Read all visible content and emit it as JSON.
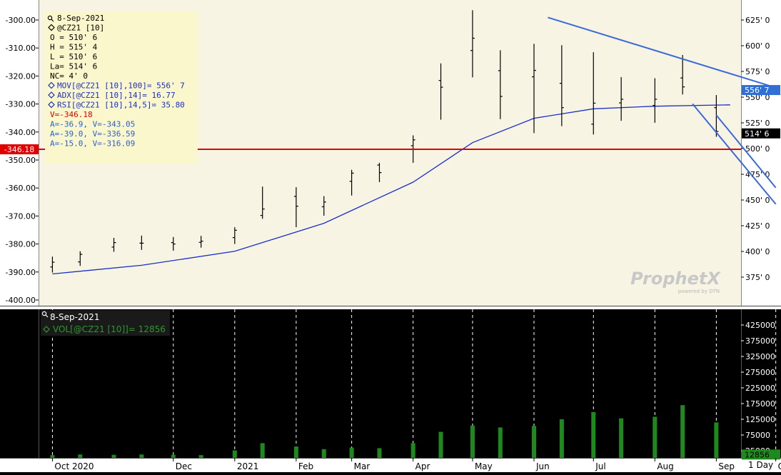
{
  "chart_data": [
    {
      "type": "bar",
      "name": "price-panel",
      "instrument": "@CZ21",
      "header": {
        "date": "8-Sep-2021",
        "symbol": "@CZ21 [10]",
        "lines": [
          "O = 510' 6",
          "H = 515' 4",
          "L = 510' 6",
          "La= 514' 6",
          "NC= 4' 0"
        ],
        "indicators": [
          "MOV[@CZ21 [10],100]= 556' 7",
          "ADX[@CZ21 [10],14]= 16.77",
          "RSI[@CZ21 [10],14,5]= 35.80"
        ],
        "cursor_v": "V=-346.18",
        "annotations": [
          "A=-36.9, V=-343.05",
          "A=-39.0, V=-336.59",
          "A=-15.0, V=-316.09"
        ]
      },
      "left_axis": {
        "ticks": [
          -300,
          -310,
          -320,
          -330,
          -340,
          -350,
          -360,
          -370,
          -380,
          -390,
          -400
        ],
        "tick_labels": [
          "-300.00",
          "-310.00",
          "-320.00",
          "-330.00",
          "-340.00",
          "-350.00",
          "-360.00",
          "-370.00",
          "-380.00",
          "-390.00",
          "-400.00"
        ],
        "ylim": [
          -401.5,
          -295.5
        ]
      },
      "right_axis": {
        "tick_labels": [
          "625' 0",
          "600' 0",
          "575' 0",
          "550' 0",
          "525' 0",
          "500' 0",
          "475' 0",
          "450' 0",
          "425' 0",
          "400' 0",
          "375' 0"
        ],
        "ticks": [
          625,
          600,
          575,
          550,
          525,
          500,
          475,
          450,
          425,
          400,
          375
        ]
      },
      "horizontal_line": {
        "label": "-346.18",
        "color": "#e00000"
      },
      "price_tags": [
        {
          "label": "556' 7",
          "color": "#2f6fd6",
          "value": 556.9
        },
        {
          "label": "514' 6",
          "color": "#000000",
          "value": 514.75
        }
      ],
      "moving_average": {
        "color": "#1a2fc8",
        "x": [
          "2020-10-01",
          "2020-11-15",
          "2021-01-01",
          "2021-02-15",
          "2021-04-01",
          "2021-05-01",
          "2021-06-01",
          "2021-07-01",
          "2021-08-01",
          "2021-09-08"
        ],
        "values": [
          -390.7,
          -387.6,
          -382.6,
          -372.6,
          -357.9,
          -343.8,
          -335.1,
          -331.7,
          -330.8,
          -330.3
        ]
      },
      "trendlines": [
        {
          "color": "#3a6ad8",
          "points": [
            [
              "2021-06-08",
              627.5
            ],
            [
              "2021-09-28",
              561
            ]
          ]
        },
        {
          "color": "#3a6ad8",
          "points": [
            [
              "2021-08-20",
              543.5
            ],
            [
              "2021-10-01",
              446
            ]
          ]
        },
        {
          "color": "#3a6ad8",
          "points": [
            [
              "2021-09-01",
              532.5
            ],
            [
              "2021-10-01",
              462
            ]
          ]
        }
      ],
      "ohlc_series": [
        {
          "x": "2020-10-01",
          "o": -388.2,
          "h": -384.5,
          "l": -390.2,
          "c": -386.5
        },
        {
          "x": "2020-10-15",
          "o": -386.4,
          "h": -382.6,
          "l": -387.8,
          "c": -383.7
        },
        {
          "x": "2020-11-01",
          "o": -381.1,
          "h": -377.8,
          "l": -382.8,
          "c": -379.5
        },
        {
          "x": "2020-11-15",
          "o": -379.7,
          "h": -377.0,
          "l": -382.1,
          "c": -379.7
        },
        {
          "x": "2020-12-01",
          "o": -379.5,
          "h": -377.5,
          "l": -382.4,
          "c": -380.0
        },
        {
          "x": "2020-12-15",
          "o": -379.4,
          "h": -377.1,
          "l": -381.3,
          "c": -379.0
        },
        {
          "x": "2021-01-01",
          "o": -377.7,
          "h": -374.0,
          "l": -380.0,
          "c": -375.1
        },
        {
          "x": "2021-01-15",
          "o": -369.8,
          "h": -359.5,
          "l": -371.0,
          "c": -367.5
        },
        {
          "x": "2021-02-01",
          "o": -363.0,
          "h": -359.7,
          "l": -374.0,
          "c": -366.5
        },
        {
          "x": "2021-02-15",
          "o": -366.7,
          "h": -362.9,
          "l": -369.9,
          "c": -365.0
        },
        {
          "x": "2021-03-01",
          "o": -357.6,
          "h": -353.5,
          "l": -362.7,
          "c": -354.7
        },
        {
          "x": "2021-03-15",
          "o": -351.8,
          "h": -351.0,
          "l": -357.9,
          "c": -354.5
        },
        {
          "x": "2021-04-01",
          "o": -344.9,
          "h": -341.2,
          "l": -351.0,
          "c": -342.8
        },
        {
          "x": "2021-04-15",
          "o": -321.6,
          "h": -315.5,
          "l": -335.6,
          "c": -324.0
        },
        {
          "x": "2021-05-01",
          "o": -310.9,
          "h": -296.5,
          "l": -320.5,
          "c": -306.5
        },
        {
          "x": "2021-05-15",
          "o": -318.1,
          "h": -310.8,
          "l": -335.4,
          "c": -327.3
        },
        {
          "x": "2021-06-01",
          "o": -320.3,
          "h": -308.5,
          "l": -340.4,
          "c": -318.0
        },
        {
          "x": "2021-06-15",
          "o": -322.6,
          "h": -309.0,
          "l": -337.9,
          "c": -331.3
        },
        {
          "x": "2021-07-01",
          "o": -337.2,
          "h": -311.5,
          "l": -340.9,
          "c": -329.7
        },
        {
          "x": "2021-07-15",
          "o": -329.6,
          "h": -320.4,
          "l": -336.0,
          "c": -328.3
        },
        {
          "x": "2021-08-01",
          "o": -330.5,
          "h": -320.8,
          "l": -336.7,
          "c": -328.3
        },
        {
          "x": "2021-08-15",
          "o": -320.7,
          "h": -312.5,
          "l": -326.6,
          "c": -323.9
        },
        {
          "x": "2021-09-01",
          "o": -331.3,
          "h": -326.8,
          "l": -341.7,
          "c": -339.8
        }
      ],
      "watermark": {
        "name": "ProphetX",
        "byline": "powered by DTN"
      }
    },
    {
      "type": "bar",
      "name": "volume-panel",
      "header": {
        "date": "8-Sep-2021",
        "indicator": "VOL[@CZ21 [10]]= 12856"
      },
      "right_axis": {
        "tick_labels": [
          "425000",
          "375000",
          "325000",
          "275000",
          "225000",
          "175000",
          "125000",
          "75000",
          "25000"
        ],
        "ticks": [
          425000,
          375000,
          325000,
          275000,
          225000,
          175000,
          125000,
          75000,
          25000
        ]
      },
      "last_value_tag": {
        "label": "12856",
        "value": 12856
      },
      "bar_color": "#1e8a1e",
      "volume_series": [
        {
          "x": "2020-10-01",
          "v": 11000
        },
        {
          "x": "2020-10-15",
          "v": 13000
        },
        {
          "x": "2020-11-01",
          "v": 12000
        },
        {
          "x": "2020-11-15",
          "v": 13000
        },
        {
          "x": "2020-12-01",
          "v": 12000
        },
        {
          "x": "2020-12-15",
          "v": 11000
        },
        {
          "x": "2021-01-01",
          "v": 26000
        },
        {
          "x": "2021-01-15",
          "v": 49000
        },
        {
          "x": "2021-02-01",
          "v": 38000
        },
        {
          "x": "2021-02-15",
          "v": 30000
        },
        {
          "x": "2021-03-01",
          "v": 35000
        },
        {
          "x": "2021-03-15",
          "v": 33000
        },
        {
          "x": "2021-04-01",
          "v": 49000
        },
        {
          "x": "2021-04-15",
          "v": 85000
        },
        {
          "x": "2021-05-01",
          "v": 105000
        },
        {
          "x": "2021-05-15",
          "v": 99000
        },
        {
          "x": "2021-06-01",
          "v": 104000
        },
        {
          "x": "2021-06-15",
          "v": 125000
        },
        {
          "x": "2021-07-01",
          "v": 148000
        },
        {
          "x": "2021-07-15",
          "v": 128000
        },
        {
          "x": "2021-08-01",
          "v": 133000
        },
        {
          "x": "2021-08-15",
          "v": 170000
        },
        {
          "x": "2021-09-01",
          "v": 115000
        }
      ]
    }
  ],
  "x_axis": {
    "labels": [
      {
        "label": "Oct 2020",
        "date": "2020-10-01"
      },
      {
        "label": "Dec",
        "date": "2020-12-01"
      },
      {
        "label": "2021",
        "date": "2021-01-01"
      },
      {
        "label": "Feb",
        "date": "2021-02-01"
      },
      {
        "label": "Mar",
        "date": "2021-03-01"
      },
      {
        "label": "Apr",
        "date": "2021-04-01"
      },
      {
        "label": "May",
        "date": "2021-05-01"
      },
      {
        "label": "Jun",
        "date": "2021-06-01"
      },
      {
        "label": "Jul",
        "date": "2021-07-01"
      },
      {
        "label": "Aug",
        "date": "2021-08-01"
      },
      {
        "label": "Sep",
        "date": "2021-09-01"
      },
      {
        "label": "Oct",
        "date": "2021-10-01"
      }
    ],
    "period": "1 Day"
  },
  "colors": {
    "price_bg": "#f7f4e4",
    "legend_bg": "#fbf7cc",
    "volume_bg": "#000000",
    "price_bars": "#000000",
    "cursor_text": "#e00000",
    "annotation_text": "#2a5fd0",
    "indicator_text": "#1a2fc8",
    "volume_text": "#2c9a2c"
  }
}
